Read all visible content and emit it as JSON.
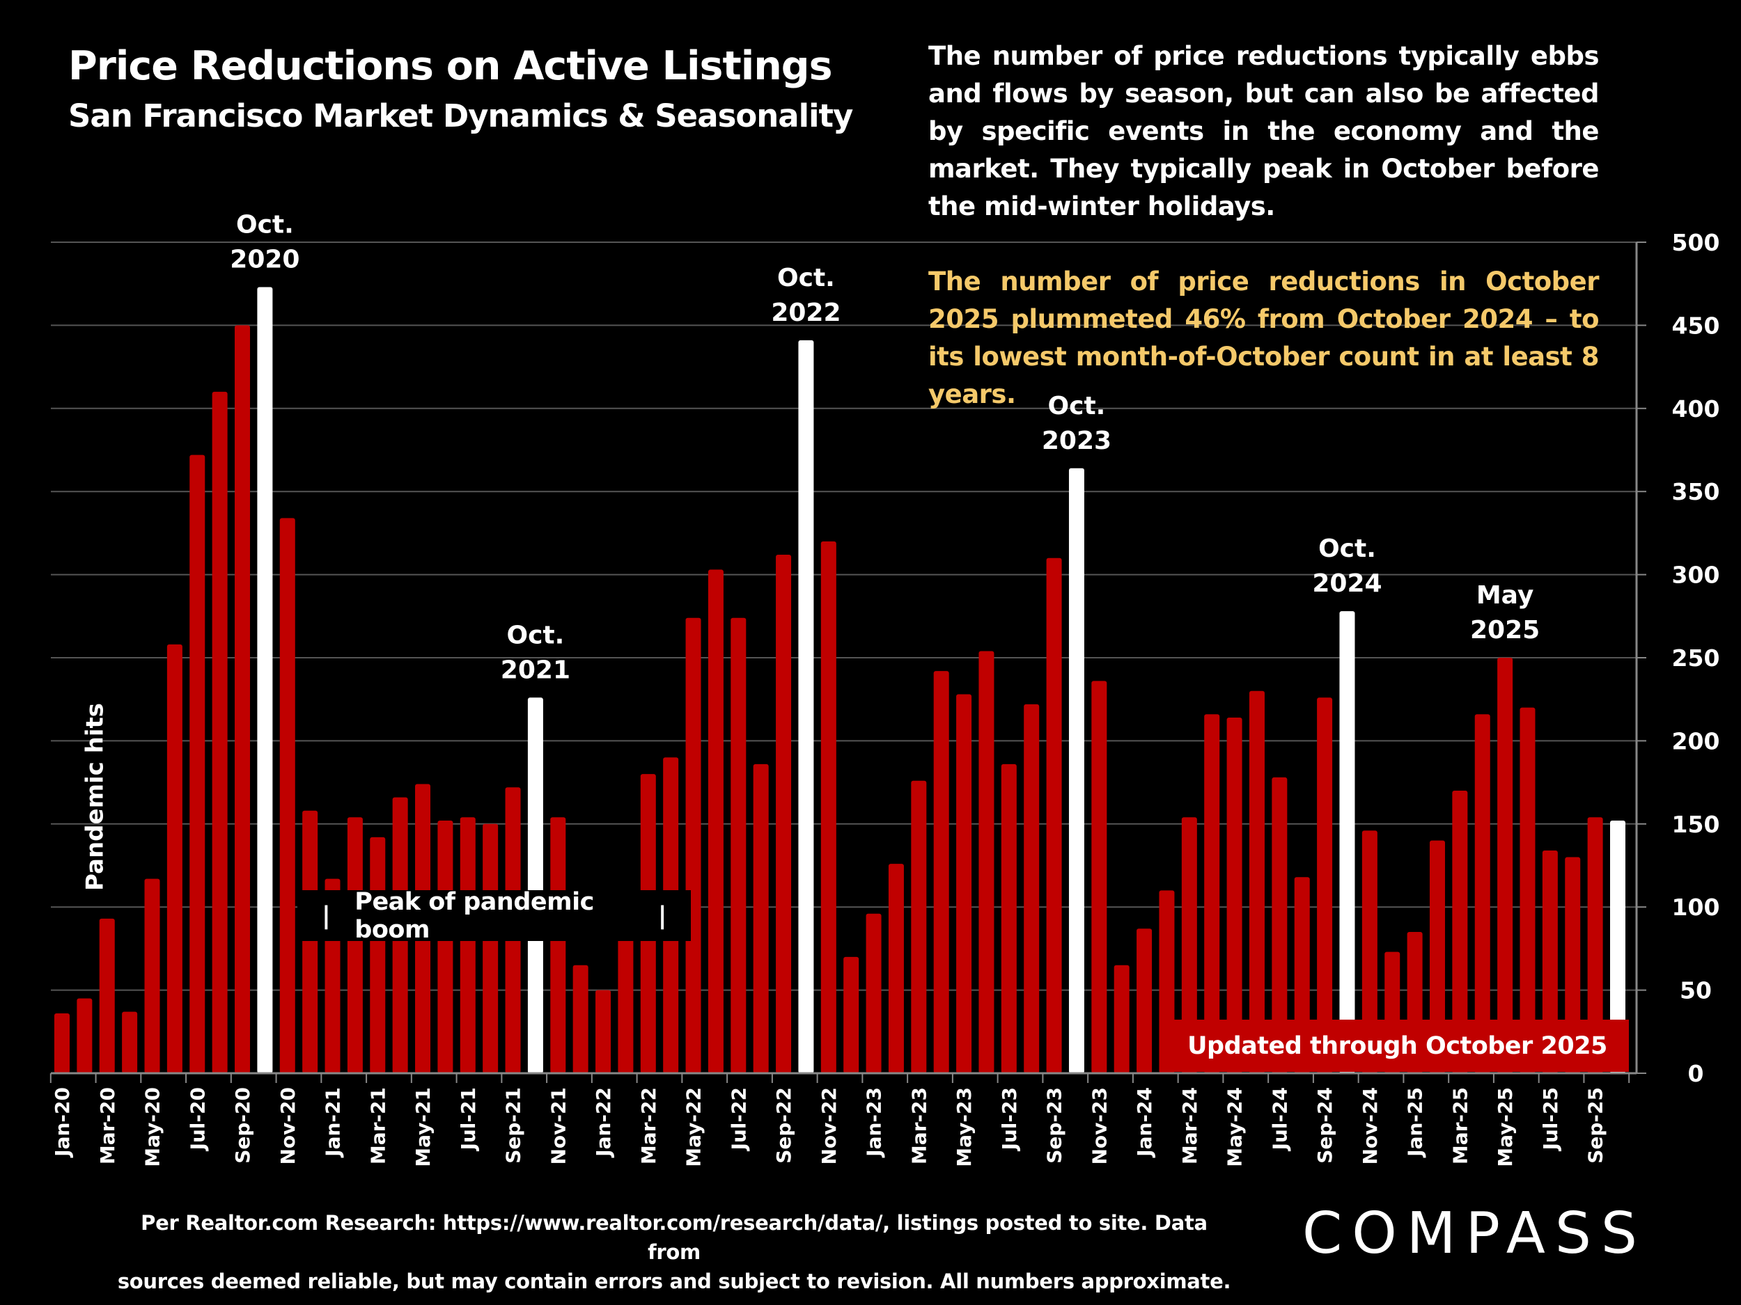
{
  "header": {
    "title": "Price Reductions on Active Listings",
    "subtitle": "San Francisco Market Dynamics & Seasonality"
  },
  "commentary": {
    "paragraph1": "The number of price reductions typically ebbs and flows by season, but can also be affected by specific events in the economy and the market. They typically peak in October before the mid-winter holidays.",
    "paragraph2": "The number of price reductions in October 2025 plummeted 46% from October 2024 – to its lowest month-of-October count in at least 8 years."
  },
  "boxes": {
    "peak": "Peak of pandemic boom",
    "peak_bar": "|",
    "updated": "Updated through October 2025"
  },
  "footer": {
    "line1": "Per Realtor.com Research:  https://www.realtor.com/research/data/, listings posted to site. Data from",
    "line2": "sources deemed reliable, but may contain errors and subject to revision. All numbers approximate."
  },
  "logo": "COMPASS",
  "chart_data": {
    "type": "bar",
    "title": "Price Reductions on Active Listings",
    "ylim": [
      0,
      500
    ],
    "yticks": [
      0,
      50,
      100,
      150,
      200,
      250,
      300,
      350,
      400,
      450,
      500
    ],
    "y_axis_side": "right",
    "grid": true,
    "colors": {
      "normal": "#c00000",
      "highlight": "#ffffff",
      "background": "#000000"
    },
    "categories": [
      "Jan-20",
      "Feb-20",
      "Mar-20",
      "Apr-20",
      "May-20",
      "Jun-20",
      "Jul-20",
      "Aug-20",
      "Sep-20",
      "Oct-20",
      "Nov-20",
      "Dec-20",
      "Jan-21",
      "Feb-21",
      "Mar-21",
      "Apr-21",
      "May-21",
      "Jun-21",
      "Jul-21",
      "Aug-21",
      "Sep-21",
      "Oct-21",
      "Nov-21",
      "Dec-21",
      "Jan-22",
      "Feb-22",
      "Mar-22",
      "Apr-22",
      "May-22",
      "Jun-22",
      "Jul-22",
      "Aug-22",
      "Sep-22",
      "Oct-22",
      "Nov-22",
      "Dec-22",
      "Jan-23",
      "Feb-23",
      "Mar-23",
      "Apr-23",
      "May-23",
      "Jun-23",
      "Jul-23",
      "Aug-23",
      "Sep-23",
      "Oct-23",
      "Nov-23",
      "Dec-23",
      "Jan-24",
      "Feb-24",
      "Mar-24",
      "Apr-24",
      "May-24",
      "Jun-24",
      "Jul-24",
      "Aug-24",
      "Sep-24",
      "Oct-24",
      "Nov-24",
      "Dec-24",
      "Jan-25",
      "Feb-25",
      "Mar-25",
      "Apr-25",
      "May-25",
      "Jun-25",
      "Jul-25",
      "Aug-25",
      "Sep-25",
      "Oct-25"
    ],
    "values": [
      36,
      45,
      93,
      37,
      117,
      258,
      372,
      410,
      450,
      473,
      334,
      158,
      117,
      154,
      142,
      166,
      174,
      152,
      154,
      150,
      172,
      226,
      154,
      65,
      50,
      100,
      180,
      190,
      274,
      303,
      274,
      186,
      312,
      441,
      320,
      70,
      96,
      126,
      176,
      242,
      228,
      254,
      186,
      222,
      310,
      364,
      236,
      65,
      87,
      110,
      154,
      216,
      214,
      230,
      178,
      118,
      226,
      278,
      146,
      73,
      85,
      140,
      170,
      216,
      250,
      220,
      134,
      130,
      154,
      152
    ],
    "highlighted": [
      "Oct-20",
      "Oct-21",
      "Oct-22",
      "Oct-23",
      "Oct-24",
      "Oct-25"
    ],
    "annotations": [
      {
        "category": "Oct-20",
        "lines": [
          "Oct.",
          "2020"
        ]
      },
      {
        "category": "Oct-21",
        "lines": [
          "Oct.",
          "2021"
        ]
      },
      {
        "category": "Oct-22",
        "lines": [
          "Oct.",
          "2022"
        ]
      },
      {
        "category": "Oct-23",
        "lines": [
          "Oct.",
          "2023"
        ]
      },
      {
        "category": "Oct-24",
        "lines": [
          "Oct.",
          "2024"
        ]
      },
      {
        "category": "May-25",
        "lines": [
          "May",
          "2025"
        ]
      }
    ],
    "vertical_annotation": {
      "category": "Mar-20",
      "text": "Pandemic hits"
    }
  }
}
